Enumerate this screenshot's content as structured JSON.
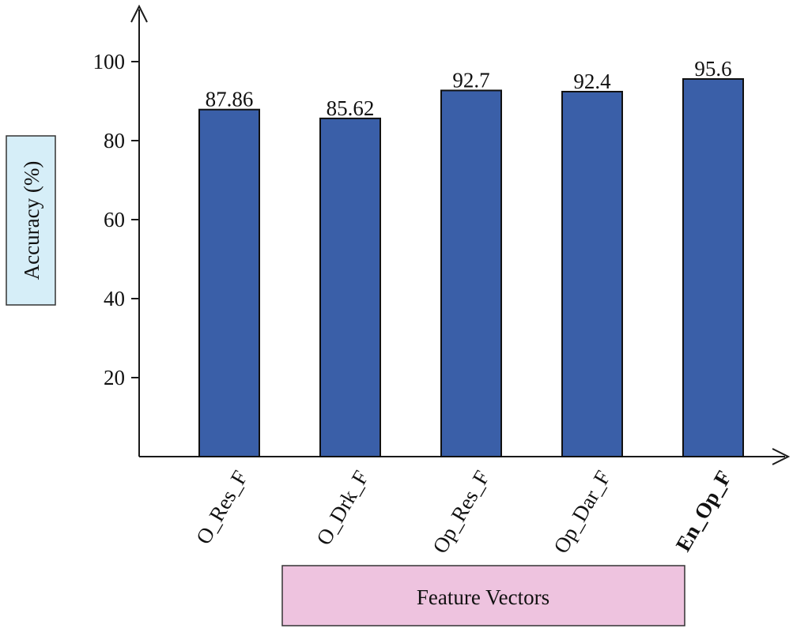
{
  "chart_data": {
    "type": "bar",
    "categories": [
      "O_Res_F",
      "O_Drk_F",
      "Op_Res_F",
      "Op_Dar_F",
      "En_Op_F"
    ],
    "values": [
      87.86,
      85.62,
      92.7,
      92.4,
      95.6
    ],
    "data_labels": [
      "87.86",
      "85.62",
      "92.7",
      "92.4",
      "95.6"
    ],
    "bold_categories": [
      "En_Op_F"
    ],
    "xlabel": "Feature Vectors",
    "ylabel": "Accuracy (%)",
    "ylim": [
      0,
      110
    ],
    "yticks": [
      20,
      40,
      60,
      80,
      100
    ],
    "grid": false,
    "legend": "none",
    "colors": {
      "bar": "#3a5fa8",
      "ylabel_box": "#d6eef8",
      "xlabel_box": "#eec3df"
    }
  }
}
